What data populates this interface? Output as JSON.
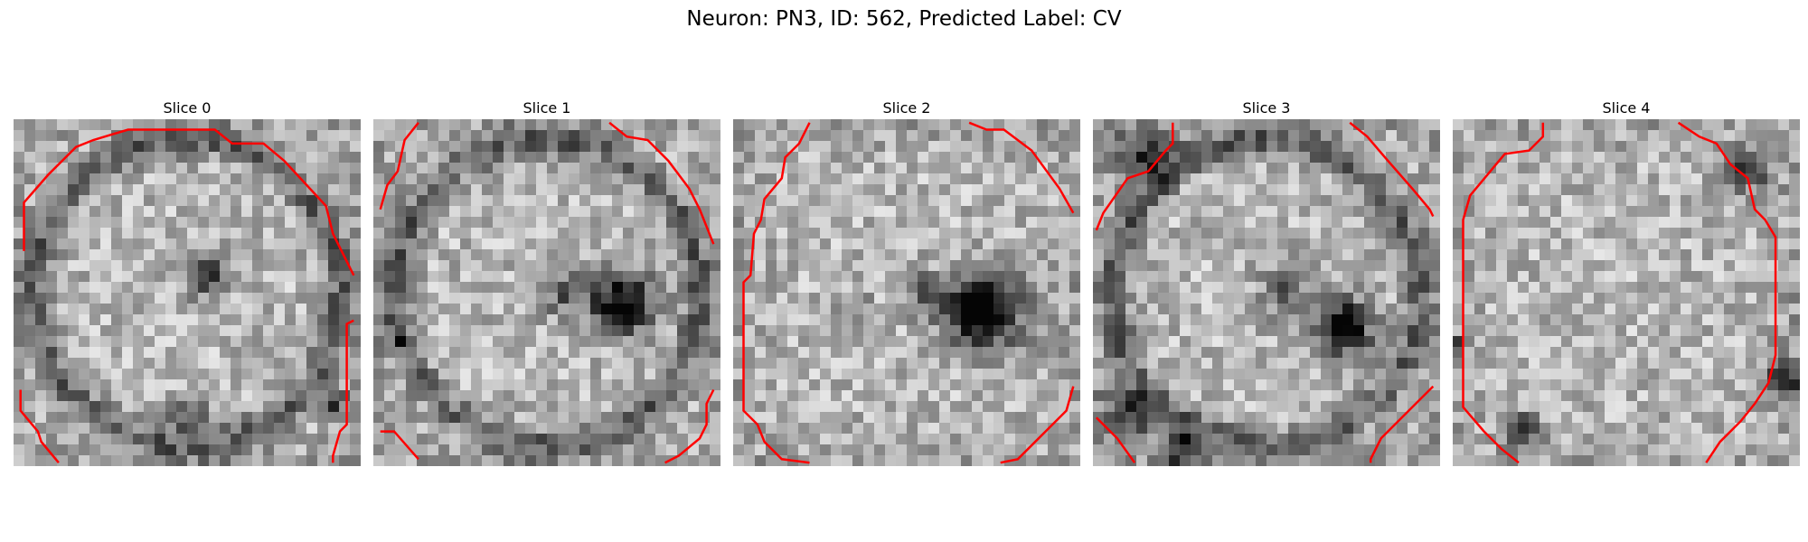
{
  "title": "Neuron: PN3, ID: 562, Predicted Label: CV",
  "colors": {
    "contour": "#ff0000",
    "background": "#ffffff"
  },
  "slices": [
    {
      "label": "Slice 0",
      "dark_ring": true,
      "dark_spots": [
        [
          0.55,
          0.45,
          0.06,
          0.55
        ],
        [
          0.5,
          0.85,
          0.05,
          0.4
        ],
        [
          0.92,
          0.82,
          0.04,
          0.5
        ]
      ],
      "contours": [
        [
          [
            0.03,
            0.38
          ],
          [
            0.03,
            0.24
          ],
          [
            0.1,
            0.16
          ],
          [
            0.18,
            0.08
          ],
          [
            0.23,
            0.06
          ],
          [
            0.33,
            0.03
          ],
          [
            0.58,
            0.03
          ],
          [
            0.63,
            0.07
          ],
          [
            0.72,
            0.07
          ],
          [
            0.78,
            0.12
          ],
          [
            0.9,
            0.25
          ],
          [
            0.92,
            0.33
          ],
          [
            0.98,
            0.45
          ]
        ],
        [
          [
            0.02,
            0.78
          ],
          [
            0.02,
            0.84
          ],
          [
            0.07,
            0.9
          ],
          [
            0.08,
            0.93
          ],
          [
            0.13,
            0.99
          ]
        ],
        [
          [
            0.98,
            0.58
          ],
          [
            0.96,
            0.59
          ],
          [
            0.96,
            0.88
          ],
          [
            0.94,
            0.9
          ],
          [
            0.92,
            0.97
          ],
          [
            0.92,
            0.99
          ]
        ]
      ]
    },
    {
      "label": "Slice 1",
      "dark_ring": true,
      "dark_spots": [
        [
          0.72,
          0.53,
          0.09,
          0.75
        ],
        [
          0.55,
          0.5,
          0.07,
          0.35
        ],
        [
          0.08,
          0.63,
          0.02,
          0.7
        ]
      ],
      "contours": [
        [
          [
            0.02,
            0.26
          ],
          [
            0.04,
            0.19
          ],
          [
            0.07,
            0.15
          ],
          [
            0.09,
            0.06
          ],
          [
            0.13,
            0.01
          ]
        ],
        [
          [
            0.68,
            0.01
          ],
          [
            0.73,
            0.05
          ],
          [
            0.79,
            0.06
          ],
          [
            0.85,
            0.12
          ],
          [
            0.91,
            0.2
          ],
          [
            0.94,
            0.26
          ],
          [
            0.98,
            0.36
          ]
        ],
        [
          [
            0.02,
            0.9
          ],
          [
            0.06,
            0.9
          ],
          [
            0.13,
            0.98
          ]
        ],
        [
          [
            0.98,
            0.78
          ],
          [
            0.96,
            0.82
          ],
          [
            0.96,
            0.88
          ],
          [
            0.94,
            0.92
          ],
          [
            0.88,
            0.97
          ],
          [
            0.84,
            0.99
          ]
        ]
      ]
    },
    {
      "label": "Slice 2",
      "dark_ring": false,
      "dark_spots": [
        [
          0.72,
          0.55,
          0.11,
          0.8
        ],
        [
          0.55,
          0.5,
          0.06,
          0.3
        ],
        [
          0.35,
          0.55,
          0.05,
          0.25
        ]
      ],
      "contours": [
        [
          [
            0.22,
            0.01
          ],
          [
            0.19,
            0.07
          ],
          [
            0.15,
            0.11
          ],
          [
            0.14,
            0.17
          ],
          [
            0.09,
            0.23
          ],
          [
            0.08,
            0.29
          ],
          [
            0.06,
            0.33
          ],
          [
            0.05,
            0.45
          ],
          [
            0.03,
            0.47
          ],
          [
            0.03,
            0.84
          ],
          [
            0.07,
            0.88
          ],
          [
            0.09,
            0.93
          ],
          [
            0.14,
            0.98
          ],
          [
            0.22,
            0.99
          ]
        ],
        [
          [
            0.68,
            0.01
          ],
          [
            0.73,
            0.03
          ],
          [
            0.78,
            0.03
          ],
          [
            0.86,
            0.09
          ],
          [
            0.94,
            0.2
          ],
          [
            0.98,
            0.27
          ]
        ],
        [
          [
            0.98,
            0.77
          ],
          [
            0.96,
            0.84
          ],
          [
            0.9,
            0.9
          ],
          [
            0.82,
            0.98
          ],
          [
            0.77,
            0.99
          ]
        ]
      ]
    },
    {
      "label": "Slice 3",
      "dark_ring": true,
      "dark_spots": [
        [
          0.72,
          0.6,
          0.08,
          0.8
        ],
        [
          0.55,
          0.5,
          0.07,
          0.35
        ],
        [
          0.15,
          0.1,
          0.08,
          0.5
        ],
        [
          0.1,
          0.85,
          0.07,
          0.5
        ],
        [
          0.25,
          0.95,
          0.06,
          0.55
        ]
      ],
      "contours": [
        [
          [
            0.23,
            0.01
          ],
          [
            0.23,
            0.07
          ],
          [
            0.21,
            0.09
          ],
          [
            0.16,
            0.15
          ],
          [
            0.1,
            0.17
          ],
          [
            0.03,
            0.27
          ],
          [
            0.01,
            0.32
          ]
        ],
        [
          [
            0.74,
            0.01
          ],
          [
            0.79,
            0.05
          ],
          [
            0.85,
            0.12
          ],
          [
            0.92,
            0.2
          ],
          [
            0.97,
            0.26
          ],
          [
            0.98,
            0.28
          ]
        ],
        [
          [
            0.01,
            0.86
          ],
          [
            0.07,
            0.92
          ],
          [
            0.12,
            0.99
          ]
        ],
        [
          [
            0.98,
            0.77
          ],
          [
            0.93,
            0.82
          ],
          [
            0.86,
            0.89
          ],
          [
            0.83,
            0.92
          ],
          [
            0.8,
            0.98
          ],
          [
            0.8,
            0.99
          ]
        ]
      ]
    },
    {
      "label": "Slice 4",
      "dark_ring": false,
      "dark_spots": [
        [
          0.95,
          0.75,
          0.05,
          0.6
        ],
        [
          0.85,
          0.15,
          0.06,
          0.45
        ],
        [
          0.2,
          0.9,
          0.05,
          0.5
        ],
        [
          0.02,
          0.65,
          0.02,
          0.7
        ]
      ],
      "contours": [
        [
          [
            0.26,
            0.01
          ],
          [
            0.26,
            0.05
          ],
          [
            0.22,
            0.09
          ],
          [
            0.15,
            0.1
          ],
          [
            0.1,
            0.16
          ],
          [
            0.05,
            0.22
          ],
          [
            0.03,
            0.29
          ],
          [
            0.03,
            0.83
          ],
          [
            0.09,
            0.9
          ],
          [
            0.14,
            0.95
          ],
          [
            0.19,
            0.99
          ]
        ],
        [
          [
            0.65,
            0.01
          ],
          [
            0.71,
            0.05
          ],
          [
            0.76,
            0.07
          ],
          [
            0.8,
            0.13
          ],
          [
            0.85,
            0.17
          ],
          [
            0.87,
            0.26
          ],
          [
            0.9,
            0.29
          ],
          [
            0.93,
            0.34
          ],
          [
            0.93,
            0.68
          ],
          [
            0.91,
            0.76
          ],
          [
            0.87,
            0.82
          ],
          [
            0.83,
            0.87
          ],
          [
            0.77,
            0.93
          ],
          [
            0.73,
            0.99
          ]
        ]
      ]
    }
  ]
}
